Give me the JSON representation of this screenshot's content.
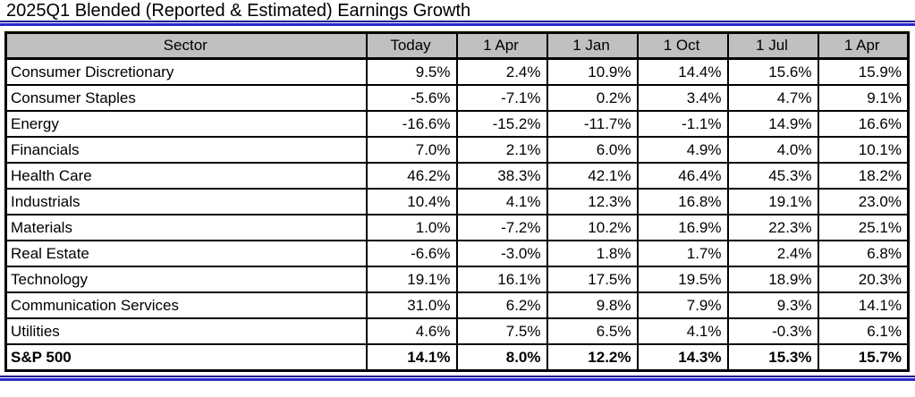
{
  "title": "2025Q1 Blended (Reported & Estimated) Earnings Growth",
  "chart_data": {
    "type": "table",
    "title": "2025Q1 Blended (Reported & Estimated) Earnings Growth",
    "columns": [
      "Sector",
      "Today",
      "1 Apr",
      "1 Jan",
      "1 Oct",
      "1 Jul",
      "1 Apr"
    ],
    "rows": [
      {
        "sector": "Consumer Discretionary",
        "values": [
          "9.5%",
          "2.4%",
          "10.9%",
          "14.4%",
          "15.6%",
          "15.9%"
        ],
        "bold": false
      },
      {
        "sector": "Consumer Staples",
        "values": [
          "-5.6%",
          "-7.1%",
          "0.2%",
          "3.4%",
          "4.7%",
          "9.1%"
        ],
        "bold": false
      },
      {
        "sector": "Energy",
        "values": [
          "-16.6%",
          "-15.2%",
          "-11.7%",
          "-1.1%",
          "14.9%",
          "16.6%"
        ],
        "bold": false
      },
      {
        "sector": "Financials",
        "values": [
          "7.0%",
          "2.1%",
          "6.0%",
          "4.9%",
          "4.0%",
          "10.1%"
        ],
        "bold": false
      },
      {
        "sector": "Health Care",
        "values": [
          "46.2%",
          "38.3%",
          "42.1%",
          "46.4%",
          "45.3%",
          "18.2%"
        ],
        "bold": false
      },
      {
        "sector": "Industrials",
        "values": [
          "10.4%",
          "4.1%",
          "12.3%",
          "16.8%",
          "19.1%",
          "23.0%"
        ],
        "bold": false
      },
      {
        "sector": "Materials",
        "values": [
          "1.0%",
          "-7.2%",
          "10.2%",
          "16.9%",
          "22.3%",
          "25.1%"
        ],
        "bold": false
      },
      {
        "sector": "Real Estate",
        "values": [
          "-6.6%",
          "-3.0%",
          "1.8%",
          "1.7%",
          "2.4%",
          "6.8%"
        ],
        "bold": false
      },
      {
        "sector": "Technology",
        "values": [
          "19.1%",
          "16.1%",
          "17.5%",
          "19.5%",
          "18.9%",
          "20.3%"
        ],
        "bold": false
      },
      {
        "sector": "Communication Services",
        "values": [
          "31.0%",
          "6.2%",
          "9.8%",
          "7.9%",
          "9.3%",
          "14.1%"
        ],
        "bold": false
      },
      {
        "sector": "Utilities",
        "values": [
          "4.6%",
          "7.5%",
          "6.5%",
          "4.1%",
          "-0.3%",
          "6.1%"
        ],
        "bold": false
      },
      {
        "sector": "S&P 500",
        "values": [
          "14.1%",
          "8.0%",
          "12.2%",
          "14.3%",
          "15.3%",
          "15.7%"
        ],
        "bold": true
      }
    ]
  },
  "colors": {
    "header_bg": "#c0c0c0",
    "grid_border": "#000000",
    "rule_navy": "#14148c",
    "rule_blue": "#2828cc"
  }
}
